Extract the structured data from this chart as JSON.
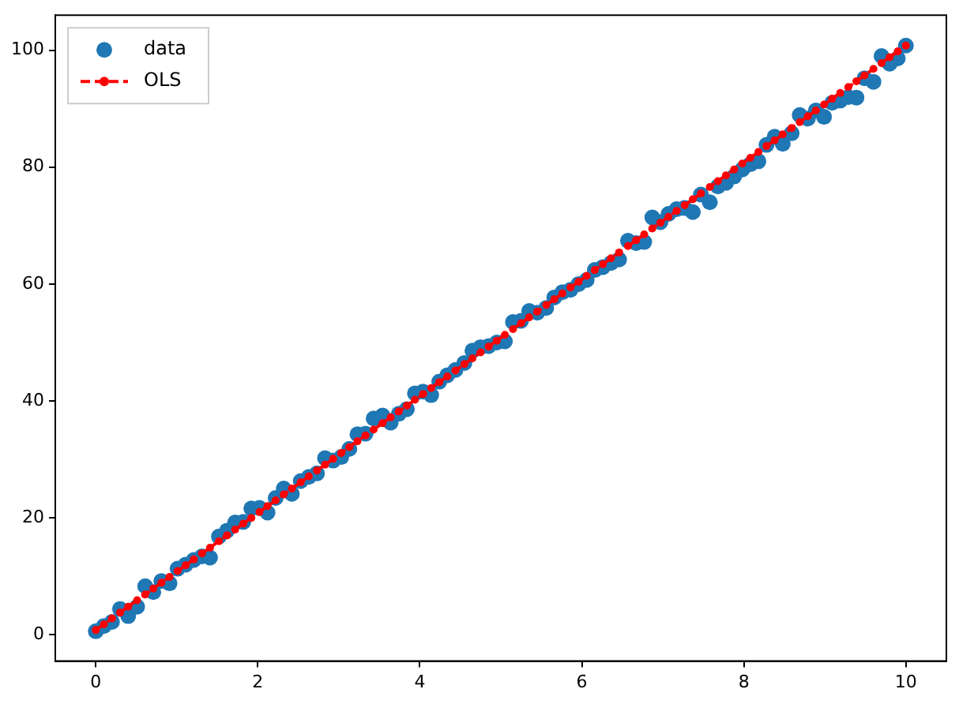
{
  "chart_data": {
    "type": "scatter",
    "xlim": [
      -0.5,
      10.5
    ],
    "ylim": [
      -4.5,
      106
    ],
    "xticks": [
      0,
      2,
      4,
      6,
      8,
      10
    ],
    "yticks": [
      0,
      20,
      40,
      60,
      80,
      100
    ],
    "grid": false,
    "legend": "top left",
    "x": [
      0,
      0.1,
      0.2,
      0.3,
      0.4,
      0.51,
      0.61,
      0.71,
      0.81,
      0.91,
      1.01,
      1.11,
      1.21,
      1.31,
      1.41,
      1.52,
      1.62,
      1.72,
      1.82,
      1.92,
      2.02,
      2.12,
      2.22,
      2.32,
      2.42,
      2.53,
      2.63,
      2.73,
      2.83,
      2.93,
      3.03,
      3.13,
      3.23,
      3.33,
      3.43,
      3.54,
      3.64,
      3.74,
      3.84,
      3.94,
      4.04,
      4.14,
      4.24,
      4.34,
      4.44,
      4.55,
      4.65,
      4.75,
      4.85,
      4.95,
      5.05,
      5.15,
      5.25,
      5.35,
      5.45,
      5.56,
      5.66,
      5.76,
      5.86,
      5.96,
      6.06,
      6.16,
      6.26,
      6.36,
      6.46,
      6.57,
      6.67,
      6.77,
      6.87,
      6.97,
      7.07,
      7.17,
      7.27,
      7.37,
      7.47,
      7.58,
      7.68,
      7.78,
      7.88,
      7.98,
      8.08,
      8.18,
      8.28,
      8.38,
      8.48,
      8.59,
      8.69,
      8.79,
      8.89,
      8.99,
      9.09,
      9.19,
      9.29,
      9.39,
      9.49,
      9.6,
      9.7,
      9.8,
      9.9,
      10
    ],
    "series": [
      {
        "name": "data",
        "type": "scatter",
        "marker": "circle",
        "color": "#1f77b4",
        "values": [
          0.6,
          1.5,
          2.2,
          4.4,
          3.2,
          4.8,
          8.3,
          7.3,
          9.2,
          8.8,
          11.3,
          12.0,
          12.8,
          13.4,
          13.2,
          16.8,
          17.8,
          19.2,
          19.3,
          21.6,
          21.7,
          20.9,
          23.4,
          25.0,
          24.1,
          26.3,
          27.0,
          27.6,
          30.2,
          29.8,
          30.4,
          31.8,
          34.3,
          34.4,
          37.0,
          37.5,
          36.3,
          37.8,
          38.6,
          41.3,
          41.6,
          41.0,
          43.3,
          44.4,
          45.3,
          46.5,
          48.6,
          49.2,
          49.4,
          50.0,
          50.2,
          53.5,
          53.7,
          55.4,
          55.1,
          55.9,
          57.7,
          58.6,
          59.0,
          60.0,
          60.7,
          62.4,
          62.9,
          63.6,
          64.2,
          67.4,
          67.0,
          67.2,
          71.4,
          70.6,
          72.0,
          72.8,
          73.0,
          72.3,
          75.3,
          74.0,
          76.7,
          77.3,
          78.4,
          79.6,
          80.5,
          81.0,
          83.8,
          85.2,
          84.0,
          85.8,
          88.9,
          88.3,
          89.7,
          88.6,
          91.0,
          91.4,
          92.0,
          91.9,
          95.2,
          94.6,
          99.0,
          97.7,
          98.6,
          100.8
        ]
      },
      {
        "name": "OLS",
        "type": "line",
        "marker": "circle",
        "line_style": "dashed",
        "color": "#ff0000",
        "values": [
          0.8,
          1.8,
          2.8,
          3.8,
          4.8,
          5.9,
          6.9,
          7.9,
          8.9,
          9.9,
          10.9,
          11.9,
          12.9,
          13.9,
          14.9,
          16.0,
          17.0,
          18.0,
          19.0,
          20.0,
          21.0,
          22.0,
          23.0,
          24.0,
          25.0,
          26.1,
          27.1,
          28.1,
          29.1,
          30.1,
          31.1,
          32.1,
          33.1,
          34.1,
          35.1,
          36.2,
          37.2,
          38.2,
          39.2,
          40.2,
          41.2,
          42.2,
          43.2,
          44.2,
          45.2,
          46.3,
          47.3,
          48.3,
          49.3,
          50.3,
          51.3,
          52.3,
          53.3,
          54.3,
          55.3,
          56.4,
          57.4,
          58.4,
          59.4,
          60.4,
          61.4,
          62.4,
          63.4,
          64.4,
          65.4,
          66.5,
          67.5,
          68.5,
          69.5,
          70.5,
          71.5,
          72.5,
          73.5,
          74.5,
          75.5,
          76.6,
          77.6,
          78.6,
          79.6,
          80.6,
          81.6,
          82.6,
          83.6,
          84.6,
          85.6,
          86.7,
          87.7,
          88.7,
          89.7,
          90.7,
          91.7,
          92.7,
          93.7,
          94.7,
          95.7,
          96.8,
          97.8,
          98.8,
          99.8,
          100.8
        ]
      }
    ]
  }
}
